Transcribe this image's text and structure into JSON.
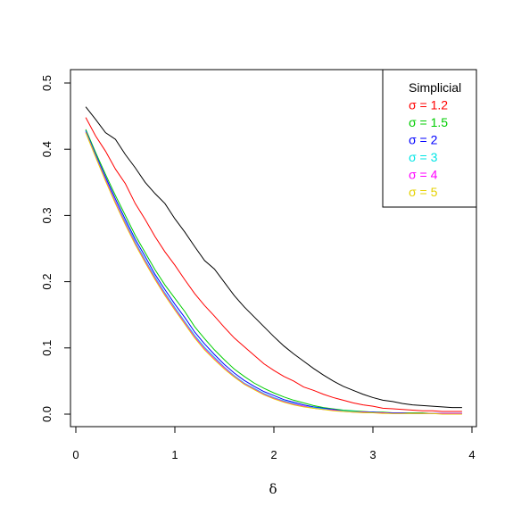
{
  "chart_data": {
    "type": "line",
    "title": "",
    "xlabel": "δ",
    "ylabel": "",
    "xlim": [
      0,
      4
    ],
    "ylim": [
      0,
      0.5
    ],
    "x_ticks": [
      "0",
      "1",
      "2",
      "3",
      "4"
    ],
    "y_ticks": [
      "0.0",
      "0.1",
      "0.2",
      "0.3",
      "0.4",
      "0.5"
    ],
    "grid": false,
    "legend_position": "top-right",
    "x": [
      0.1,
      0.2,
      0.3,
      0.4,
      0.5,
      0.6,
      0.7,
      0.8,
      0.9,
      1.0,
      1.1,
      1.2,
      1.3,
      1.4,
      1.5,
      1.6,
      1.7,
      1.8,
      1.9,
      2.0,
      2.1,
      2.2,
      2.3,
      2.4,
      2.5,
      2.6,
      2.7,
      2.8,
      2.9,
      3.0,
      3.1,
      3.2,
      3.3,
      3.4,
      3.5,
      3.6,
      3.7,
      3.8,
      3.9
    ],
    "series": [
      {
        "name": "Simplicial",
        "color": "#000000",
        "values": [
          0.464,
          0.445,
          0.425,
          0.415,
          0.392,
          0.372,
          0.35,
          0.333,
          0.318,
          0.295,
          0.275,
          0.253,
          0.232,
          0.219,
          0.199,
          0.179,
          0.162,
          0.147,
          0.132,
          0.117,
          0.103,
          0.091,
          0.08,
          0.069,
          0.059,
          0.05,
          0.042,
          0.036,
          0.03,
          0.025,
          0.021,
          0.019,
          0.016,
          0.014,
          0.013,
          0.012,
          0.011,
          0.01,
          0.01
        ]
      },
      {
        "name": "σ = 1.2",
        "color": "#ff0000",
        "values": [
          0.448,
          0.42,
          0.397,
          0.37,
          0.348,
          0.318,
          0.294,
          0.268,
          0.245,
          0.225,
          0.203,
          0.182,
          0.164,
          0.148,
          0.131,
          0.115,
          0.102,
          0.089,
          0.076,
          0.066,
          0.057,
          0.05,
          0.041,
          0.036,
          0.03,
          0.025,
          0.021,
          0.017,
          0.014,
          0.012,
          0.009,
          0.008,
          0.007,
          0.006,
          0.005,
          0.005,
          0.004,
          0.004,
          0.004
        ]
      },
      {
        "name": "σ = 1.5",
        "color": "#00cc00",
        "values": [
          0.43,
          0.395,
          0.362,
          0.33,
          0.3,
          0.27,
          0.244,
          0.218,
          0.195,
          0.175,
          0.155,
          0.132,
          0.114,
          0.097,
          0.082,
          0.068,
          0.057,
          0.047,
          0.039,
          0.032,
          0.026,
          0.021,
          0.017,
          0.013,
          0.01,
          0.008,
          0.006,
          0.005,
          0.004,
          0.003,
          0.003,
          0.002,
          0.002,
          0.002,
          0.002,
          0.001,
          0.001,
          0.001,
          0.001
        ]
      },
      {
        "name": "σ = 2",
        "color": "#0000ff",
        "values": [
          0.428,
          0.392,
          0.358,
          0.325,
          0.294,
          0.264,
          0.238,
          0.211,
          0.188,
          0.166,
          0.146,
          0.124,
          0.106,
          0.09,
          0.075,
          0.062,
          0.051,
          0.042,
          0.034,
          0.028,
          0.022,
          0.018,
          0.014,
          0.011,
          0.009,
          0.007,
          0.005,
          0.004,
          0.003,
          0.003,
          0.002,
          0.002,
          0.002,
          0.001,
          0.001,
          0.001,
          0.001,
          0.001,
          0.001
        ]
      },
      {
        "name": "σ = 3",
        "color": "#00e5e5",
        "values": [
          0.427,
          0.39,
          0.355,
          0.321,
          0.29,
          0.26,
          0.233,
          0.207,
          0.183,
          0.161,
          0.14,
          0.119,
          0.101,
          0.086,
          0.071,
          0.058,
          0.047,
          0.039,
          0.031,
          0.025,
          0.02,
          0.016,
          0.012,
          0.01,
          0.008,
          0.006,
          0.005,
          0.004,
          0.003,
          0.002,
          0.002,
          0.001,
          0.001,
          0.001,
          0.001,
          0.001,
          0.001,
          0.001,
          0.001
        ]
      },
      {
        "name": "σ = 4",
        "color": "#ff00ff",
        "values": [
          0.426,
          0.389,
          0.354,
          0.32,
          0.288,
          0.258,
          0.231,
          0.205,
          0.181,
          0.159,
          0.138,
          0.117,
          0.099,
          0.084,
          0.07,
          0.057,
          0.046,
          0.038,
          0.03,
          0.024,
          0.019,
          0.015,
          0.012,
          0.009,
          0.007,
          0.006,
          0.004,
          0.003,
          0.003,
          0.002,
          0.002,
          0.001,
          0.001,
          0.001,
          0.001,
          0.001,
          0.001,
          0.001,
          0.001
        ]
      },
      {
        "name": "σ = 5",
        "color": "#e5d100",
        "values": [
          0.425,
          0.388,
          0.352,
          0.318,
          0.286,
          0.256,
          0.229,
          0.203,
          0.179,
          0.157,
          0.136,
          0.115,
          0.097,
          0.082,
          0.068,
          0.056,
          0.045,
          0.037,
          0.029,
          0.023,
          0.018,
          0.014,
          0.011,
          0.009,
          0.007,
          0.005,
          0.004,
          0.003,
          0.002,
          0.002,
          0.001,
          0.001,
          0.001,
          0.001,
          0.001,
          0.001,
          0.0,
          0.0,
          0.0
        ]
      }
    ]
  }
}
